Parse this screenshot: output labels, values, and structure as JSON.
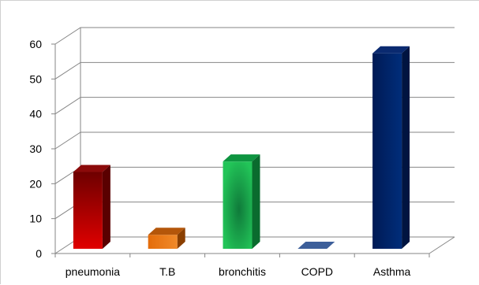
{
  "chart_data": {
    "type": "bar",
    "categories": [
      "pneumonia",
      "T.B",
      "bronchitis",
      "COPD",
      "Asthma"
    ],
    "values": [
      22,
      4,
      25,
      0,
      56
    ],
    "ylim": [
      0,
      60
    ],
    "yticks": [
      "0",
      "10",
      "20",
      "30",
      "40",
      "50",
      "60"
    ],
    "grid": true,
    "three_d": true,
    "colors": [
      "#c00000",
      "#e36c09",
      "#00b050",
      "#4f6fa8",
      "#002060"
    ]
  }
}
